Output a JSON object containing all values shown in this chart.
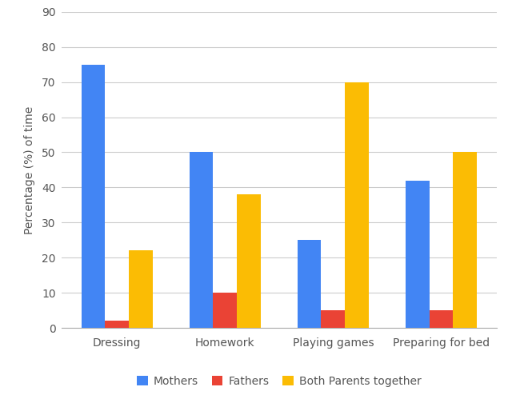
{
  "categories": [
    "Dressing",
    "Homework",
    "Playing games",
    "Preparing for bed"
  ],
  "series": {
    "Mothers": [
      75,
      50,
      25,
      42
    ],
    "Fathers": [
      2,
      10,
      5,
      5
    ],
    "Both Parents together": [
      22,
      38,
      70,
      50
    ]
  },
  "colors": {
    "Mothers": "#4285F4",
    "Fathers": "#EA4335",
    "Both Parents together": "#FBBC04"
  },
  "ylabel": "Percentage (%) of time",
  "ylim": [
    0,
    90
  ],
  "yticks": [
    0,
    10,
    20,
    30,
    40,
    50,
    60,
    70,
    80,
    90
  ],
  "background_color": "#ffffff",
  "grid_color": "#cccccc",
  "bar_width": 0.22,
  "legend_fontsize": 10,
  "axis_fontsize": 10,
  "tick_fontsize": 10
}
